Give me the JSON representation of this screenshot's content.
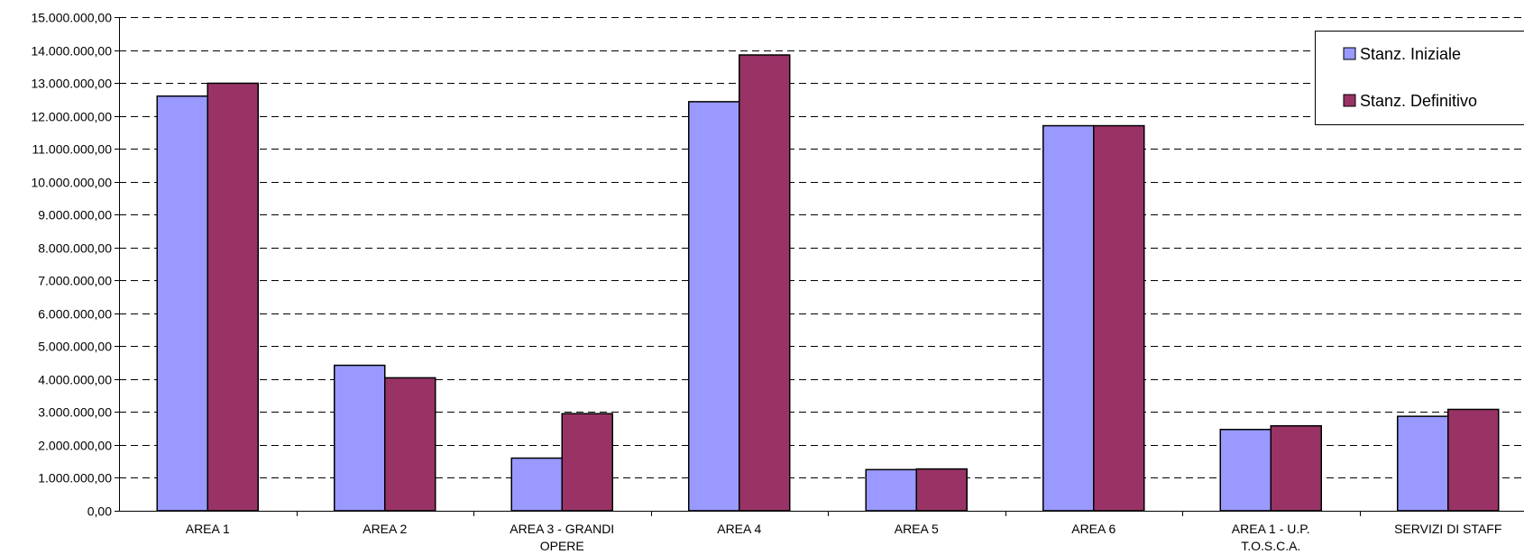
{
  "chart_data": {
    "type": "bar",
    "title": "",
    "xlabel": "",
    "ylabel": "",
    "ylim": [
      0,
      15000000
    ],
    "y_tick_step": 1000000,
    "y_tick_labels": [
      "0,00",
      "1.000.000,00",
      "2.000.000,00",
      "3.000.000,00",
      "4.000.000,00",
      "5.000.000,00",
      "6.000.000,00",
      "7.000.000,00",
      "8.000.000,00",
      "9.000.000,00",
      "10.000.000,00",
      "11.000.000,00",
      "12.000.000,00",
      "13.000.000,00",
      "14.000.000,00",
      "15.000.000,00"
    ],
    "categories": [
      [
        "AREA 1"
      ],
      [
        "AREA 2"
      ],
      [
        "AREA 3 - GRANDI",
        "OPERE"
      ],
      [
        "AREA 4"
      ],
      [
        "AREA 5"
      ],
      [
        "AREA 6"
      ],
      [
        "AREA 1 - U.P.",
        "T.O.S.C.A."
      ],
      [
        "SERVIZI DI STAFF"
      ]
    ],
    "series": [
      {
        "name": "Stanz. Iniziale",
        "color": "#9999FF",
        "values": [
          12600000,
          4420000,
          1600000,
          12430000,
          1250000,
          11700000,
          2470000,
          2870000
        ]
      },
      {
        "name": "Stanz. Definitivo",
        "color": "#993366",
        "values": [
          12990000,
          4040000,
          2950000,
          13850000,
          1270000,
          11700000,
          2580000,
          3080000
        ]
      }
    ],
    "grid": true,
    "grid_style": "dashed",
    "legend_position": "top-right"
  }
}
